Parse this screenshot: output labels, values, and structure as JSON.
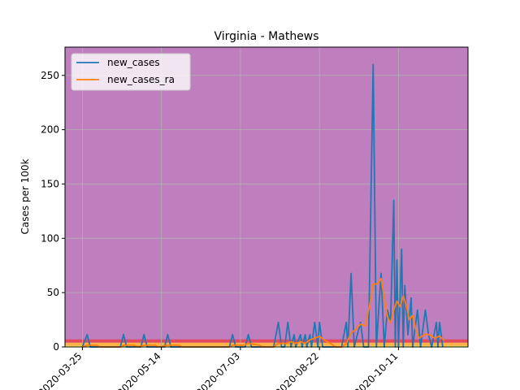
{
  "chart_data": {
    "type": "line",
    "title": "Virginia - Mathews",
    "xlabel": "",
    "ylabel": "Cases per 100k",
    "ylim": [
      0,
      276
    ],
    "xlim": [
      "2020-03-14",
      "2020-11-24"
    ],
    "x_ticks": [
      "2020-03-25",
      "2020-05-14",
      "2020-07-03",
      "2020-08-22",
      "2020-10-11"
    ],
    "y_ticks": [
      0,
      50,
      100,
      150,
      200,
      250
    ],
    "grid": true,
    "legend_position": "top-left",
    "background_color": "#bf7fbf",
    "threshold_bands": [
      {
        "from": 0,
        "to": 1,
        "color": "#ffff66"
      },
      {
        "from": 1,
        "to": 4,
        "color": "#ffb347"
      },
      {
        "from": 4,
        "to": 7,
        "color": "#e34a5f"
      }
    ],
    "series": [
      {
        "name": "new_cases",
        "color": "#1f77b4",
        "points": [
          [
            "2020-03-25",
            0
          ],
          [
            "2020-03-28",
            11.3
          ],
          [
            "2020-03-30",
            0
          ],
          [
            "2020-04-18",
            0
          ],
          [
            "2020-04-20",
            11.3
          ],
          [
            "2020-04-22",
            0
          ],
          [
            "2020-05-01",
            0
          ],
          [
            "2020-05-03",
            11.3
          ],
          [
            "2020-05-05",
            0
          ],
          [
            "2020-05-16",
            0
          ],
          [
            "2020-05-18",
            11.3
          ],
          [
            "2020-05-20",
            0
          ],
          [
            "2020-06-26",
            0
          ],
          [
            "2020-06-28",
            11.3
          ],
          [
            "2020-06-30",
            0
          ],
          [
            "2020-07-06",
            0
          ],
          [
            "2020-07-08",
            11.3
          ],
          [
            "2020-07-10",
            0
          ],
          [
            "2020-07-24",
            0
          ],
          [
            "2020-07-27",
            22.6
          ],
          [
            "2020-07-29",
            0
          ],
          [
            "2020-07-31",
            0
          ],
          [
            "2020-08-02",
            22.6
          ],
          [
            "2020-08-04",
            0
          ],
          [
            "2020-08-06",
            11.3
          ],
          [
            "2020-08-07",
            0
          ],
          [
            "2020-08-10",
            11.3
          ],
          [
            "2020-08-11",
            0
          ],
          [
            "2020-08-13",
            11.3
          ],
          [
            "2020-08-14",
            0
          ],
          [
            "2020-08-16",
            11.3
          ],
          [
            "2020-08-17",
            0
          ],
          [
            "2020-08-19",
            22.6
          ],
          [
            "2020-08-21",
            0
          ],
          [
            "2020-08-22",
            22.6
          ],
          [
            "2020-08-24",
            0
          ],
          [
            "2020-09-05",
            0
          ],
          [
            "2020-09-08",
            22.6
          ],
          [
            "2020-09-09",
            0
          ],
          [
            "2020-09-11",
            67.8
          ],
          [
            "2020-09-13",
            0
          ],
          [
            "2020-09-15",
            11.3
          ],
          [
            "2020-09-17",
            22.6
          ],
          [
            "2020-09-19",
            0
          ],
          [
            "2020-09-22",
            0
          ],
          [
            "2020-09-25",
            260
          ],
          [
            "2020-09-27",
            0
          ],
          [
            "2020-09-30",
            67.8
          ],
          [
            "2020-10-02",
            0
          ],
          [
            "2020-10-04",
            34
          ],
          [
            "2020-10-06",
            22.6
          ],
          [
            "2020-10-08",
            135
          ],
          [
            "2020-10-09",
            0
          ],
          [
            "2020-10-10",
            80
          ],
          [
            "2020-10-11",
            0
          ],
          [
            "2020-10-13",
            90
          ],
          [
            "2020-10-14",
            0
          ],
          [
            "2020-10-15",
            56.5
          ],
          [
            "2020-10-17",
            11.3
          ],
          [
            "2020-10-19",
            45
          ],
          [
            "2020-10-20",
            0
          ],
          [
            "2020-10-23",
            34
          ],
          [
            "2020-10-25",
            0
          ],
          [
            "2020-10-28",
            34
          ],
          [
            "2020-10-30",
            11.3
          ],
          [
            "2020-11-01",
            0
          ],
          [
            "2020-11-04",
            22.6
          ],
          [
            "2020-11-05",
            0
          ],
          [
            "2020-11-06",
            22.6
          ],
          [
            "2020-11-08",
            0
          ]
        ]
      },
      {
        "name": "new_cases_ra",
        "color": "#ff7f0e",
        "points": [
          [
            "2020-03-25",
            0
          ],
          [
            "2020-03-28",
            1.6
          ],
          [
            "2020-04-03",
            1.6
          ],
          [
            "2020-04-05",
            0
          ],
          [
            "2020-04-18",
            0
          ],
          [
            "2020-04-20",
            1.6
          ],
          [
            "2020-04-27",
            1.6
          ],
          [
            "2020-04-29",
            0
          ],
          [
            "2020-05-03",
            1.6
          ],
          [
            "2020-05-10",
            1.6
          ],
          [
            "2020-05-12",
            0
          ],
          [
            "2020-05-18",
            1.6
          ],
          [
            "2020-05-25",
            1.6
          ],
          [
            "2020-05-27",
            0
          ],
          [
            "2020-06-26",
            0
          ],
          [
            "2020-06-28",
            1.6
          ],
          [
            "2020-07-05",
            1.6
          ],
          [
            "2020-07-08",
            3.2
          ],
          [
            "2020-07-15",
            1.6
          ],
          [
            "2020-07-17",
            0
          ],
          [
            "2020-07-24",
            0
          ],
          [
            "2020-07-27",
            3.2
          ],
          [
            "2020-08-01",
            3.2
          ],
          [
            "2020-08-04",
            4.8
          ],
          [
            "2020-08-07",
            3.2
          ],
          [
            "2020-08-10",
            4.8
          ],
          [
            "2020-08-13",
            3.2
          ],
          [
            "2020-08-16",
            6.5
          ],
          [
            "2020-08-19",
            8.1
          ],
          [
            "2020-08-22",
            9.7
          ],
          [
            "2020-08-25",
            6.5
          ],
          [
            "2020-08-29",
            3.2
          ],
          [
            "2020-09-01",
            0
          ],
          [
            "2020-09-05",
            0
          ],
          [
            "2020-09-08",
            3.2
          ],
          [
            "2020-09-11",
            12.9
          ],
          [
            "2020-09-14",
            16.1
          ],
          [
            "2020-09-17",
            21
          ],
          [
            "2020-09-20",
            19.4
          ],
          [
            "2020-09-23",
            40
          ],
          [
            "2020-09-25",
            58
          ],
          [
            "2020-09-28",
            58
          ],
          [
            "2020-09-30",
            63
          ],
          [
            "2020-10-02",
            45
          ],
          [
            "2020-10-04",
            28
          ],
          [
            "2020-10-06",
            22
          ],
          [
            "2020-10-08",
            34
          ],
          [
            "2020-10-10",
            42
          ],
          [
            "2020-10-12",
            37
          ],
          [
            "2020-10-14",
            47
          ],
          [
            "2020-10-16",
            38
          ],
          [
            "2020-10-18",
            25
          ],
          [
            "2020-10-20",
            29
          ],
          [
            "2020-10-22",
            16
          ],
          [
            "2020-10-24",
            8
          ],
          [
            "2020-10-26",
            10
          ],
          [
            "2020-10-28",
            12
          ],
          [
            "2020-10-31",
            11
          ],
          [
            "2020-11-03",
            8
          ],
          [
            "2020-11-06",
            10
          ],
          [
            "2020-11-09",
            6
          ]
        ]
      }
    ]
  }
}
